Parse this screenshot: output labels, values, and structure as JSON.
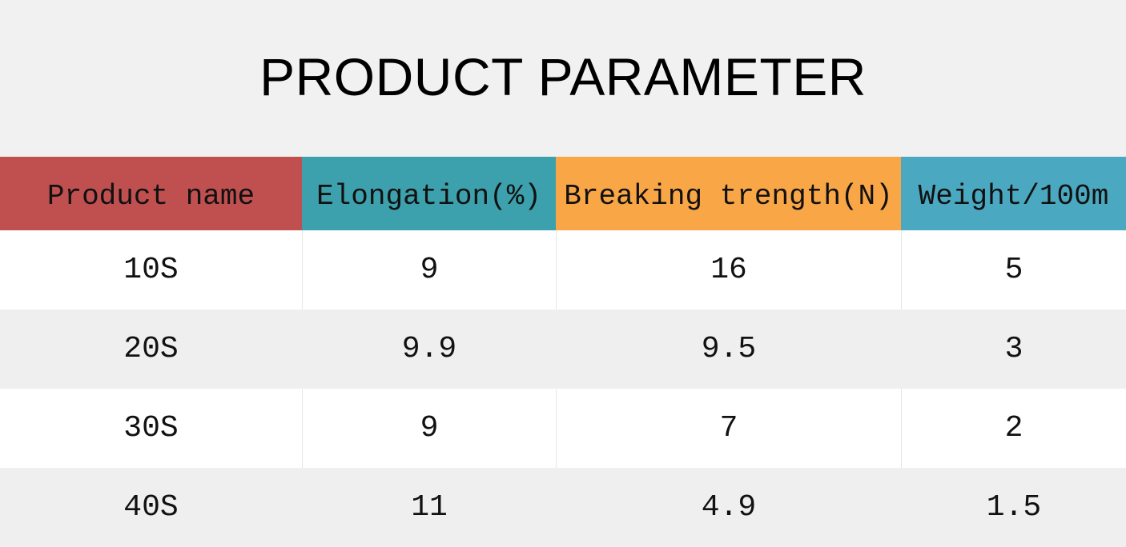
{
  "page": {
    "title": "PRODUCT PARAMETER"
  },
  "table": {
    "headers": [
      {
        "label": "Product name",
        "color": "#bf504f"
      },
      {
        "label": "Elongation(%)",
        "color": "#3ca0ad"
      },
      {
        "label": "Breaking trength(N)",
        "color": "#f9a646"
      },
      {
        "label": "Weight/100m",
        "color": "#4aa9c1"
      }
    ],
    "rows": [
      [
        "10S",
        "9",
        "16",
        "5"
      ],
      [
        "20S",
        "9.9",
        "9.5",
        "3"
      ],
      [
        "30S",
        "9",
        "7",
        "2"
      ],
      [
        "40S",
        "11",
        "4.9",
        "1.5"
      ]
    ]
  }
}
